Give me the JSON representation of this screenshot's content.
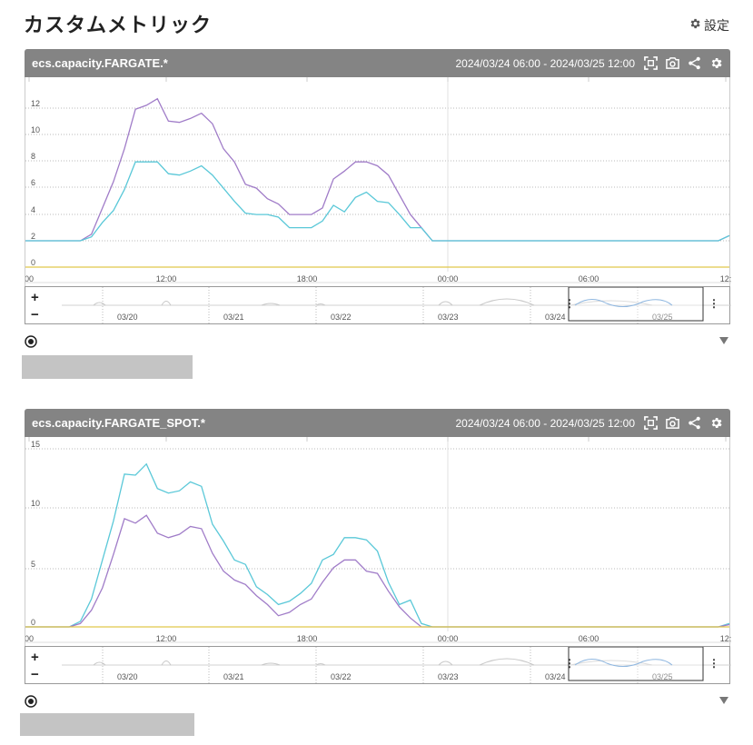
{
  "page": {
    "title": "カスタムメトリック",
    "settings_label": "設定"
  },
  "colors": {
    "header_bg": "#848484",
    "series_purple": "#a07cc8",
    "series_cyan": "#5ac8d8",
    "zero_line": "#e0c64a",
    "grid": "#bbbbbb"
  },
  "panels": [
    {
      "metric_name": "ecs.capacity.FARGATE.*",
      "time_range": "2024/03/24 06:00 - 2024/03/25 12:00",
      "icons": [
        "fullscreen-icon",
        "camera-icon",
        "share-icon",
        "gear-icon"
      ],
      "x_tick_labels": [
        "00",
        "12:00",
        "18:00",
        "00:00",
        "06:00",
        "12:"
      ],
      "navigator_labels": [
        "03/20",
        "03/21",
        "03/22",
        "03/23",
        "03/24",
        "03/25"
      ],
      "zoom_in": "+",
      "zoom_out": "−",
      "chart_data": {
        "type": "line",
        "y_tick_labels": [
          "0",
          "2",
          "4",
          "6",
          "8",
          "10",
          "12"
        ],
        "ylim": [
          0,
          13.4
        ],
        "series": [
          {
            "color": "#a07cc8",
            "values": [
              2,
              2,
              2,
              2,
              2,
              2,
              2.5,
              4.5,
              6.5,
              9,
              12,
              12.3,
              12.8,
              11.1,
              11,
              11.3,
              11.7,
              10.9,
              9,
              8,
              6.3,
              6,
              5.2,
              4.8,
              4,
              4,
              4,
              4.5,
              6.7,
              7.3,
              8,
              8,
              7.7,
              7,
              5.5,
              4,
              3,
              2,
              2,
              2,
              2,
              2,
              2,
              2,
              2,
              2,
              2,
              2,
              2,
              2,
              2,
              2,
              2,
              2,
              2,
              2,
              2,
              2,
              2,
              2,
              2,
              2,
              2,
              2,
              2.4
            ]
          },
          {
            "color": "#5ac8d8",
            "values": [
              2,
              2,
              2,
              2,
              2,
              2,
              2.3,
              3.4,
              4.3,
              5.9,
              8,
              8,
              8,
              7.1,
              7,
              7.3,
              7.7,
              7,
              6,
              5,
              4.1,
              4,
              4,
              3.8,
              3,
              3,
              3,
              3.5,
              4.7,
              4.2,
              5.3,
              5.7,
              5,
              4.9,
              4,
              3,
              3,
              2,
              2,
              2,
              2,
              2,
              2,
              2,
              2,
              2,
              2,
              2,
              2,
              2,
              2,
              2,
              2,
              2,
              2,
              2,
              2,
              2,
              2,
              2,
              2,
              2,
              2,
              2,
              2.4
            ]
          },
          {
            "color": "#e0c64a",
            "values": [
              0,
              0,
              0,
              0,
              0,
              0,
              0,
              0,
              0,
              0,
              0,
              0,
              0,
              0,
              0,
              0,
              0,
              0,
              0,
              0,
              0,
              0,
              0,
              0,
              0,
              0,
              0,
              0,
              0,
              0,
              0,
              0,
              0,
              0,
              0,
              0,
              0,
              0,
              0,
              0,
              0,
              0,
              0,
              0,
              0,
              0,
              0,
              0,
              0,
              0,
              0,
              0,
              0,
              0,
              0,
              0,
              0,
              0,
              0,
              0,
              0,
              0,
              0,
              0,
              0
            ]
          }
        ]
      }
    },
    {
      "metric_name": "ecs.capacity.FARGATE_SPOT.*",
      "time_range": "2024/03/24 06:00 - 2024/03/25 12:00",
      "icons": [
        "fullscreen-icon",
        "camera-icon",
        "share-icon",
        "gear-icon"
      ],
      "x_tick_labels": [
        "00",
        "12:00",
        "18:00",
        "00:00",
        "06:00",
        "12:"
      ],
      "navigator_labels": [
        "03/20",
        "03/21",
        "03/22",
        "03/23",
        "03/24",
        "03/25"
      ],
      "zoom_in": "+",
      "zoom_out": "−",
      "chart_data": {
        "type": "line",
        "y_tick_labels": [
          "0",
          "5",
          "10",
          "15"
        ],
        "ylim": [
          0,
          15.8
        ],
        "series": [
          {
            "color": "#5ac8d8",
            "values": [
              0,
              0,
              0,
              0,
              0,
              0.5,
              2.5,
              6,
              9.5,
              13.7,
              13.6,
              14.6,
              12.4,
              12,
              12.2,
              13,
              12.6,
              9.2,
              7.7,
              6,
              5.6,
              3.6,
              2.9,
              2,
              2.3,
              3,
              3.9,
              6,
              6.5,
              8,
              8,
              7.8,
              6.8,
              4,
              2,
              2.4,
              0.3,
              0,
              0,
              0,
              0,
              0,
              0,
              0,
              0,
              0,
              0,
              0,
              0,
              0,
              0,
              0,
              0,
              0,
              0,
              0,
              0,
              0,
              0,
              0,
              0,
              0,
              0,
              0,
              0.3
            ]
          },
          {
            "color": "#a07cc8",
            "values": [
              0,
              0,
              0,
              0,
              0,
              0.3,
              1.5,
              3.5,
              6.5,
              9.7,
              9.3,
              10,
              8.4,
              8,
              8.3,
              9,
              8.8,
              6.6,
              5,
              4.2,
              3.8,
              2.8,
              2,
              1,
              1.3,
              2,
              2.5,
              4,
              5.3,
              6,
              6,
              5,
              4.8,
              3.2,
              1.8,
              0.8,
              0,
              0,
              0,
              0,
              0,
              0,
              0,
              0,
              0,
              0,
              0,
              0,
              0,
              0,
              0,
              0,
              0,
              0,
              0,
              0,
              0,
              0,
              0,
              0,
              0,
              0,
              0,
              0,
              0.2
            ]
          },
          {
            "color": "#e0c64a",
            "values": [
              0,
              0,
              0,
              0,
              0,
              0,
              0,
              0,
              0,
              0,
              0,
              0,
              0,
              0,
              0,
              0,
              0,
              0,
              0,
              0,
              0,
              0,
              0,
              0,
              0,
              0,
              0,
              0,
              0,
              0,
              0,
              0,
              0,
              0,
              0,
              0,
              0,
              0,
              0,
              0,
              0,
              0,
              0,
              0,
              0,
              0,
              0,
              0,
              0,
              0,
              0,
              0,
              0,
              0,
              0,
              0,
              0,
              0,
              0,
              0,
              0,
              0,
              0,
              0,
              0
            ]
          }
        ]
      }
    }
  ]
}
